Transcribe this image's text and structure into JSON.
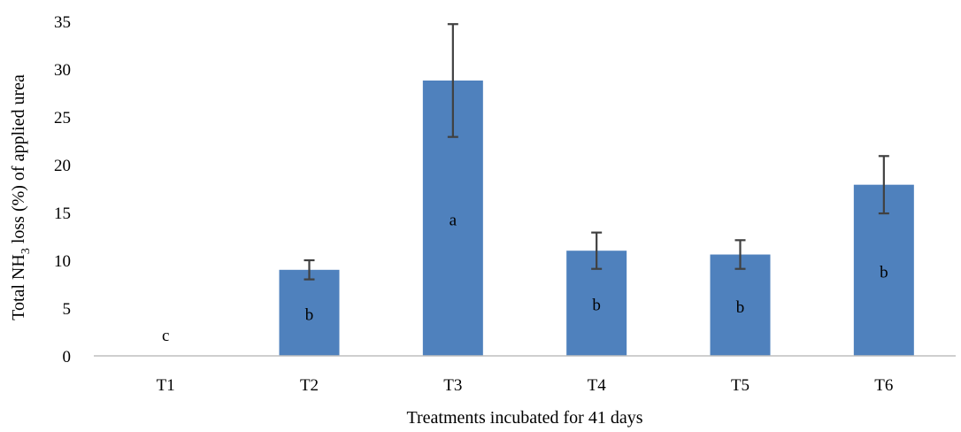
{
  "chart_data": {
    "type": "bar",
    "title": "",
    "xlabel": "Treatments incubated for 41 days",
    "ylabel": {
      "prefix": "Total NH",
      "subscript": "3",
      "suffix": " loss (%) of applied urea"
    },
    "ylim": [
      0,
      35
    ],
    "yticks": [
      0,
      5,
      10,
      15,
      20,
      25,
      30,
      35
    ],
    "categories": [
      "T1",
      "T2",
      "T3",
      "T4",
      "T5",
      "T6"
    ],
    "values": [
      0,
      9.0,
      28.8,
      11.0,
      10.6,
      17.9
    ],
    "errors": [
      0,
      1.0,
      5.9,
      1.9,
      1.5,
      3.0
    ],
    "letters": [
      "c",
      "b",
      "a",
      "b",
      "b",
      "b"
    ],
    "bar_color": "#4f81bd",
    "error_color": "#404040",
    "grid": false,
    "legend": "none"
  }
}
